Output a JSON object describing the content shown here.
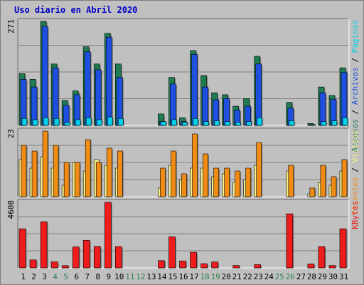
{
  "colors": {
    "accesos": "#1e7c50",
    "archivos": "#1f4fe0",
    "paginas": "#00d0e8",
    "visitas": "#f8f08a",
    "clientes": "#f08c14",
    "kbytes": "#ee1c1c",
    "weekend_label": "#2e7d4e",
    "weekday_label": "#000000",
    "title": "#0000c8"
  },
  "chart_data": {
    "type": "bar",
    "title": "Uso diario en Abril 2020",
    "categories": [
      "1",
      "2",
      "3",
      "4",
      "5",
      "6",
      "7",
      "8",
      "9",
      "10",
      "11",
      "12",
      "13",
      "14",
      "15",
      "16",
      "17",
      "18",
      "19",
      "20",
      "21",
      "22",
      "23",
      "24",
      "25",
      "26",
      "27",
      "28",
      "29",
      "30",
      "31"
    ],
    "weekend_days": [
      "4",
      "5",
      "11",
      "12",
      "18",
      "19",
      "25",
      "26"
    ],
    "panels": [
      {
        "id": "top",
        "ymax_label": "271",
        "ylim": [
          0,
          271
        ],
        "right_labels": [
          {
            "text": "Accesos",
            "color": "#1e7c50"
          },
          {
            "text": " / ",
            "color": "#000000"
          },
          {
            "text": "Archivos",
            "color": "#1f4fe0"
          },
          {
            "text": " / ",
            "color": "#000000"
          },
          {
            "text": "Páginas",
            "color": "#00d0e8"
          }
        ],
        "series": [
          {
            "name": "Accesos",
            "values": [
              135,
              120,
              271,
              160,
              65,
              90,
              205,
              160,
              240,
              160,
              0,
              0,
              0,
              30,
              125,
              20,
              195,
              130,
              85,
              80,
              50,
              70,
              180,
              0,
              0,
              60,
              0,
              5,
              100,
              78,
              150
            ]
          },
          {
            "name": "Archivos",
            "values": [
              120,
              100,
              258,
              150,
              52,
              80,
              192,
              145,
              230,
              125,
              0,
              0,
              0,
              10,
              108,
              10,
              185,
              100,
              67,
              70,
              40,
              50,
              160,
              0,
              0,
              45,
              0,
              2,
              85,
              68,
              138
            ]
          },
          {
            "name": "Páginas",
            "values": [
              18,
              15,
              20,
              18,
              8,
              15,
              20,
              15,
              22,
              18,
              0,
              0,
              0,
              10,
              15,
              8,
              18,
              10,
              12,
              10,
              8,
              10,
              20,
              0,
              0,
              12,
              0,
              2,
              10,
              12,
              20
            ]
          }
        ]
      },
      {
        "id": "mid",
        "ymax_label": "23",
        "ylim": [
          0,
          23
        ],
        "right_labels": [
          {
            "text": "Clientes",
            "color": "#f08c14"
          },
          {
            "text": " / ",
            "color": "#000000"
          },
          {
            "text": "Visitas",
            "color": "#f8f08a"
          }
        ],
        "series": [
          {
            "name": "Visitas",
            "values": [
              13,
              10,
              14,
              10,
              4,
              12,
              9,
              13,
              11,
              10,
              0,
              0,
              0,
              3,
              11,
              6,
              10,
              10,
              7,
              8,
              5,
              6,
              11,
              0,
              0,
              9,
              0,
              1,
              5,
              4,
              9
            ]
          },
          {
            "name": "Clientes",
            "values": [
              18,
              16,
              23,
              18,
              12,
              12,
              20,
              12,
              17,
              16,
              0,
              0,
              0,
              10,
              16,
              8,
              22,
              15,
              10,
              10,
              9,
              10,
              19,
              0,
              0,
              11,
              0,
              3,
              11,
              7,
              13
            ]
          }
        ]
      },
      {
        "id": "bottom",
        "ymax_label": "4608",
        "ylim": [
          0,
          4608
        ],
        "right_labels": [
          {
            "text": "KBytes",
            "color": "#ee1c1c"
          }
        ],
        "series": [
          {
            "name": "KBytes",
            "values": [
              2750,
              560,
              3250,
              430,
              160,
              1480,
              1940,
              1510,
              4608,
              1500,
              0,
              0,
              0,
              510,
              2190,
              490,
              1100,
              300,
              420,
              0,
              170,
              0,
              230,
              0,
              0,
              3800,
              0,
              280,
              1500,
              170,
              2750
            ]
          }
        ]
      }
    ]
  }
}
